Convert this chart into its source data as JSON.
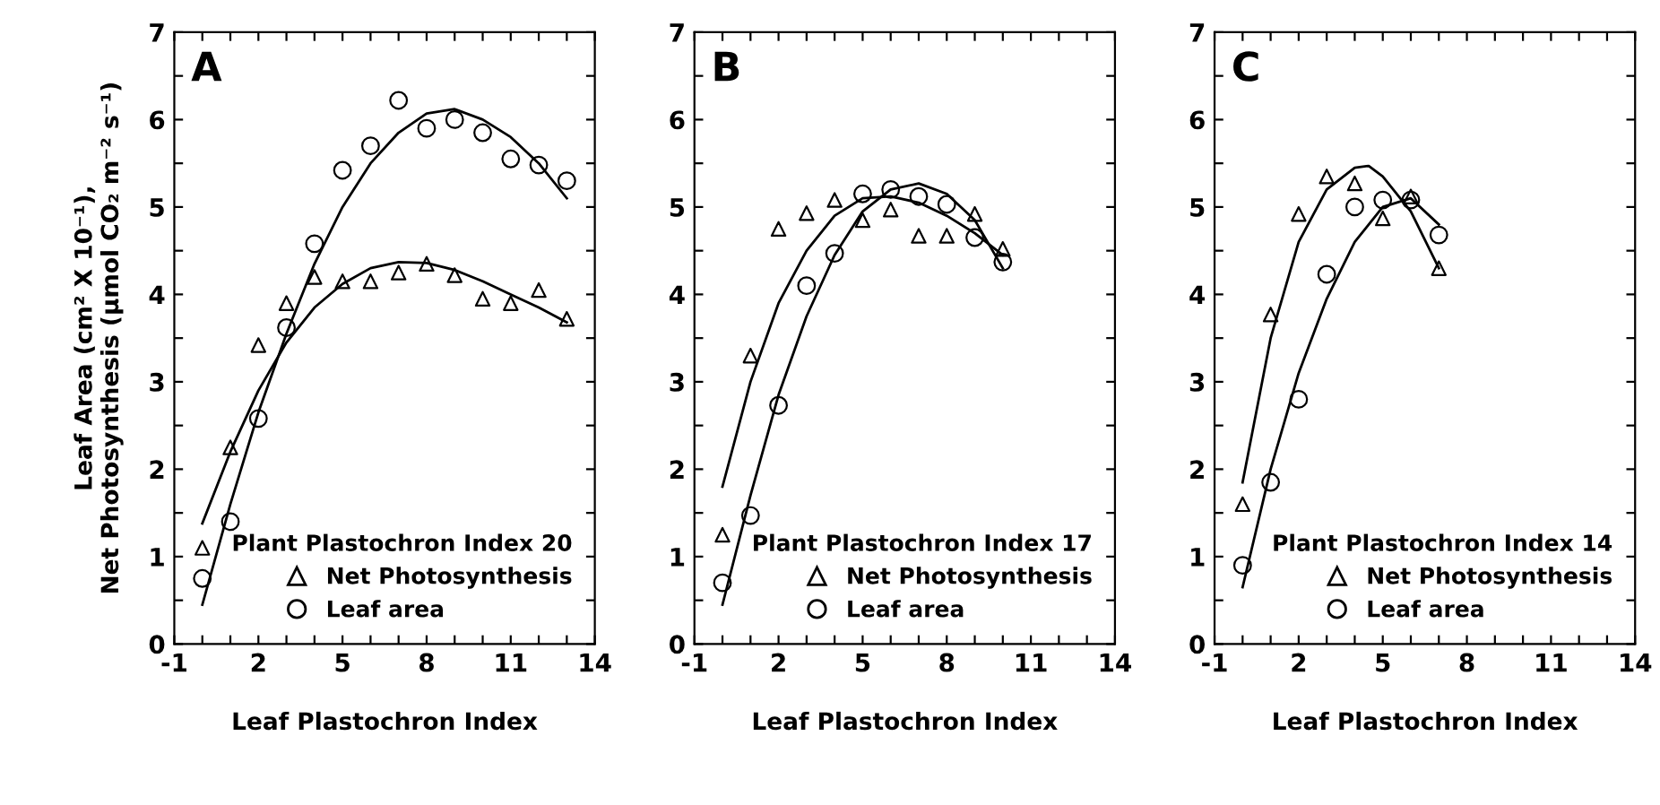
{
  "chart_data": [
    {
      "type": "scatter",
      "title": "A",
      "ylabel": "Leaf Area (cm² X 10⁻¹),\nNet Photosynthesis (µmol CO₂ m⁻² s⁻¹)",
      "xlabel": "Leaf Plastochron Index",
      "legend_title": "Plant Plastochron Index 20",
      "legend": "bottom right",
      "grid": false,
      "xlim": [
        -1,
        14
      ],
      "xticks": [
        -1,
        {
          "value": 0,
          "label": null
        },
        {
          "value": 1,
          "label": null
        },
        2,
        {
          "value": 3,
          "label": null
        },
        {
          "value": 4,
          "label": null
        },
        5,
        {
          "value": 6,
          "label": null
        },
        {
          "value": 7,
          "label": null
        },
        8,
        {
          "value": 9,
          "label": null
        },
        {
          "value": 10,
          "label": null
        },
        11,
        {
          "value": 12,
          "label": null
        },
        {
          "value": 13,
          "label": null
        },
        14
      ],
      "ylim": [
        0,
        7
      ],
      "yticks": [
        0,
        {
          "value": 0.5,
          "label": null
        },
        1,
        {
          "value": 1.5,
          "label": null
        },
        2,
        {
          "value": 2.5,
          "label": null
        },
        3,
        {
          "value": 3.5,
          "label": null
        },
        4,
        {
          "value": 4.5,
          "label": null
        },
        5,
        {
          "value": 5.5,
          "label": null
        },
        6,
        {
          "value": 6.5,
          "label": null
        },
        7
      ],
      "series": [
        {
          "name": "Net Photosynthesis",
          "color": "#000000",
          "marker": "triangle",
          "x": [
            0,
            1,
            2,
            3,
            4,
            5,
            6,
            7,
            8,
            9,
            10,
            11,
            12,
            13
          ],
          "values": [
            1.1,
            2.25,
            3.42,
            3.9,
            4.2,
            4.15,
            4.15,
            4.25,
            4.35,
            4.22,
            3.95,
            3.9,
            4.05,
            3.72
          ]
        },
        {
          "name": "Leaf area",
          "color": "#000000",
          "marker": "circle",
          "x": [
            0,
            1,
            2,
            3,
            4,
            5,
            6,
            7,
            8,
            9,
            10,
            11,
            12,
            13
          ],
          "values": [
            0.75,
            1.4,
            2.58,
            3.62,
            4.58,
            5.42,
            5.7,
            6.22,
            5.9,
            6.0,
            5.85,
            5.55,
            5.48,
            5.3
          ]
        },
        {
          "type": "line",
          "color": "#000000",
          "marker": "none",
          "x": [
            0,
            1,
            2,
            3,
            4,
            5,
            6,
            7,
            8,
            9,
            10,
            11,
            12,
            13
          ],
          "values": [
            1.38,
            2.2,
            2.9,
            3.45,
            3.85,
            4.12,
            4.3,
            4.37,
            4.36,
            4.28,
            4.15,
            4.0,
            3.85,
            3.68
          ]
        },
        {
          "type": "line",
          "color": "#000000",
          "marker": "none",
          "x": [
            0,
            1,
            2,
            3,
            4,
            5,
            6,
            7,
            8,
            9,
            10,
            11,
            12,
            13
          ],
          "values": [
            0.45,
            1.6,
            2.65,
            3.55,
            4.35,
            5.0,
            5.5,
            5.85,
            6.07,
            6.12,
            6.0,
            5.8,
            5.5,
            5.1
          ]
        }
      ]
    },
    {
      "type": "scatter",
      "title": "B",
      "xlabel": "Leaf Plastochron Index",
      "legend_title": "Plant Plastochron Index 17",
      "legend": "bottom right",
      "grid": false,
      "xlim": [
        -1,
        14
      ],
      "xticks": [
        -1,
        {
          "value": 0,
          "label": null
        },
        {
          "value": 1,
          "label": null
        },
        2,
        {
          "value": 3,
          "label": null
        },
        {
          "value": 4,
          "label": null
        },
        5,
        {
          "value": 6,
          "label": null
        },
        {
          "value": 7,
          "label": null
        },
        8,
        {
          "value": 9,
          "label": null
        },
        {
          "value": 10,
          "label": null
        },
        11,
        {
          "value": 12,
          "label": null
        },
        {
          "value": 13,
          "label": null
        },
        14
      ],
      "ylim": [
        0,
        7
      ],
      "yticks": [
        0,
        {
          "value": 0.5,
          "label": null
        },
        1,
        {
          "value": 1.5,
          "label": null
        },
        2,
        {
          "value": 2.5,
          "label": null
        },
        3,
        {
          "value": 3.5,
          "label": null
        },
        4,
        {
          "value": 4.5,
          "label": null
        },
        5,
        {
          "value": 5.5,
          "label": null
        },
        6,
        {
          "value": 6.5,
          "label": null
        },
        7
      ],
      "series": [
        {
          "name": "Net Photosynthesis",
          "color": "#000000",
          "marker": "triangle",
          "x": [
            0,
            1,
            2,
            3,
            4,
            5,
            6,
            7,
            8,
            9,
            10
          ],
          "values": [
            1.25,
            3.3,
            4.75,
            4.93,
            5.08,
            4.85,
            4.97,
            4.67,
            4.67,
            4.92,
            4.52
          ]
        },
        {
          "name": "Leaf area",
          "color": "#000000",
          "marker": "circle",
          "x": [
            0,
            1,
            2,
            3,
            4,
            5,
            6,
            7,
            8,
            9,
            10
          ],
          "values": [
            0.7,
            1.47,
            2.73,
            4.1,
            4.47,
            5.15,
            5.2,
            5.12,
            5.03,
            4.65,
            4.37
          ]
        },
        {
          "type": "line",
          "color": "#000000",
          "marker": "none",
          "x": [
            0,
            1,
            2,
            3,
            4,
            5,
            6,
            7,
            8,
            9,
            10
          ],
          "values": [
            1.8,
            3.0,
            3.9,
            4.5,
            4.9,
            5.1,
            5.12,
            5.05,
            4.9,
            4.7,
            4.45
          ]
        },
        {
          "type": "line",
          "color": "#000000",
          "marker": "none",
          "x": [
            0,
            1,
            2,
            3,
            4,
            5,
            6,
            7,
            8,
            9,
            10
          ],
          "values": [
            0.45,
            1.7,
            2.85,
            3.75,
            4.45,
            4.95,
            5.2,
            5.27,
            5.15,
            4.85,
            4.3
          ]
        }
      ]
    },
    {
      "type": "scatter",
      "title": "C",
      "xlabel": "Leaf Plastochron Index",
      "legend_title": "Plant Plastochron Index 14",
      "legend": "bottom right",
      "grid": false,
      "xlim": [
        -1,
        14
      ],
      "xticks": [
        -1,
        {
          "value": 0,
          "label": null
        },
        {
          "value": 1,
          "label": null
        },
        2,
        {
          "value": 3,
          "label": null
        },
        {
          "value": 4,
          "label": null
        },
        5,
        {
          "value": 6,
          "label": null
        },
        {
          "value": 7,
          "label": null
        },
        8,
        {
          "value": 9,
          "label": null
        },
        {
          "value": 10,
          "label": null
        },
        11,
        {
          "value": 12,
          "label": null
        },
        {
          "value": 13,
          "label": null
        },
        14
      ],
      "ylim": [
        0,
        7
      ],
      "yticks": [
        0,
        {
          "value": 0.5,
          "label": null
        },
        1,
        {
          "value": 1.5,
          "label": null
        },
        2,
        {
          "value": 2.5,
          "label": null
        },
        3,
        {
          "value": 3.5,
          "label": null
        },
        4,
        {
          "value": 4.5,
          "label": null
        },
        5,
        {
          "value": 5.5,
          "label": null
        },
        6,
        {
          "value": 6.5,
          "label": null
        },
        7
      ],
      "series": [
        {
          "name": "Net Photosynthesis",
          "color": "#000000",
          "marker": "triangle",
          "x": [
            0,
            1,
            2,
            3,
            4,
            5,
            6,
            7
          ],
          "values": [
            1.6,
            3.77,
            4.92,
            5.35,
            5.27,
            4.87,
            5.12,
            4.3
          ]
        },
        {
          "name": "Leaf area",
          "color": "#000000",
          "marker": "circle",
          "x": [
            0,
            1,
            2,
            3,
            4,
            5,
            6,
            7
          ],
          "values": [
            0.9,
            1.85,
            2.8,
            4.23,
            5.0,
            5.08,
            5.08,
            4.68
          ]
        },
        {
          "type": "line",
          "color": "#000000",
          "marker": "none",
          "x": [
            0,
            1,
            2,
            3,
            4,
            4.5,
            5,
            6,
            7
          ],
          "values": [
            1.85,
            3.5,
            4.6,
            5.2,
            5.45,
            5.47,
            5.35,
            4.95,
            4.3
          ]
        },
        {
          "type": "line",
          "color": "#000000",
          "marker": "none",
          "x": [
            0,
            1,
            2,
            3,
            4,
            5,
            6,
            7
          ],
          "values": [
            0.65,
            2.0,
            3.1,
            3.95,
            4.6,
            5.0,
            5.1,
            4.8
          ]
        }
      ]
    }
  ]
}
